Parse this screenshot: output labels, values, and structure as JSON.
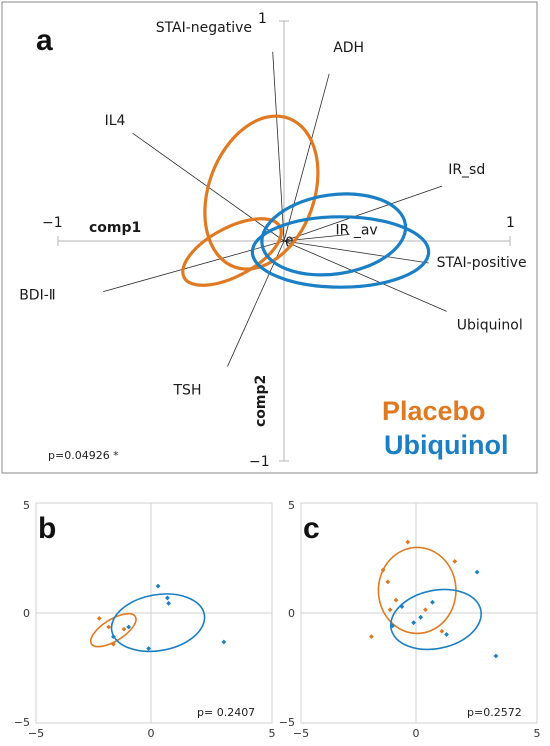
{
  "colors": {
    "placebo": "#e07a22",
    "ubiquinol": "#1a7fc4"
  },
  "chart_data": [
    {
      "panel": "a",
      "type": "scatter",
      "chart_subtype": "biplot",
      "xlabel": "comp1",
      "ylabel": "comp2",
      "xlim": [
        -1,
        1
      ],
      "ylim": [
        -1,
        1
      ],
      "axis_tick_labels": {
        "x_min": "−1",
        "x_max": "1",
        "y_min": "−1",
        "y_max": "1",
        "origin": "0"
      },
      "loadings": [
        {
          "name": "STAI-negative",
          "x": -0.05,
          "y": 0.86
        },
        {
          "name": "ADH",
          "x": 0.2,
          "y": 0.76
        },
        {
          "name": "IL4",
          "x": -0.67,
          "y": 0.49
        },
        {
          "name": "IR_sd",
          "x": 0.7,
          "y": 0.25
        },
        {
          "name": "IR _av",
          "x": 0.29,
          "y": 0.03
        },
        {
          "name": "STAI-positive",
          "x": 0.64,
          "y": -0.1
        },
        {
          "name": "BDI-Ⅱ",
          "x": -0.8,
          "y": -0.23
        },
        {
          "name": "Ubiquinol",
          "x": 0.72,
          "y": -0.32
        },
        {
          "name": "TSH",
          "x": -0.25,
          "y": -0.57
        }
      ],
      "legend": [
        {
          "name": "Placebo",
          "color": "#e07a22"
        },
        {
          "name": "Ubiquinol",
          "color": "#1a7fc4"
        }
      ],
      "ellipses": [
        {
          "series": "Placebo",
          "cx": -0.1,
          "cy": 0.22,
          "rx": 0.35,
          "ry": 0.24,
          "angle": -70
        },
        {
          "series": "Placebo",
          "cx": -0.23,
          "cy": -0.05,
          "rx": 0.24,
          "ry": 0.11,
          "angle": -28
        },
        {
          "series": "Ubiquinol",
          "cx": 0.22,
          "cy": 0.03,
          "rx": 0.32,
          "ry": 0.18,
          "angle": -8
        },
        {
          "series": "Ubiquinol",
          "cx": 0.25,
          "cy": -0.05,
          "rx": 0.39,
          "ry": 0.16,
          "angle": 0
        }
      ],
      "annotation": "p=0.04926 *"
    },
    {
      "panel": "b",
      "type": "scatter",
      "xlim": [
        -5,
        5
      ],
      "ylim": [
        -5,
        5
      ],
      "axis_tick_labels": {
        "x_min": "−5",
        "x_max": "5",
        "y_min": "−5",
        "y_max": "5",
        "origin": "0"
      },
      "series": [
        {
          "name": "Placebo",
          "color": "#e07a22",
          "points": [
            [
              -2.2,
              -0.25
            ],
            [
              -1.8,
              -0.65
            ],
            [
              -1.6,
              -1.45
            ],
            [
              -1.15,
              -0.75
            ]
          ],
          "ellipse": {
            "cx": -1.6,
            "cy": -0.8,
            "rx": 1.1,
            "ry": 0.5,
            "angle": -32
          }
        },
        {
          "name": "Ubiquinol",
          "color": "#1a7fc4",
          "points": [
            [
              -1.6,
              -1.1
            ],
            [
              -0.95,
              -0.65
            ],
            [
              -0.1,
              -1.65
            ],
            [
              0.3,
              1.25
            ],
            [
              0.7,
              0.7
            ],
            [
              0.75,
              0.45
            ],
            [
              3.1,
              -1.35
            ]
          ],
          "ellipse": {
            "cx": 0.3,
            "cy": -0.45,
            "rx": 2.0,
            "ry": 1.3,
            "angle": -10
          }
        }
      ],
      "annotation": "p= 0.2407"
    },
    {
      "panel": "c",
      "type": "scatter",
      "xlim": [
        -5,
        5
      ],
      "ylim": [
        -5,
        5
      ],
      "axis_tick_labels": {
        "x_min": "−5",
        "x_max": "5",
        "y_min": "−5",
        "y_max": "5",
        "origin": "0"
      },
      "series": [
        {
          "name": "Placebo",
          "color": "#e07a22",
          "points": [
            [
              -1.9,
              -1.1
            ],
            [
              -1.4,
              2.0
            ],
            [
              -1.2,
              1.45
            ],
            [
              -1.1,
              0.15
            ],
            [
              -0.85,
              0.6
            ],
            [
              -0.35,
              3.3
            ],
            [
              0.4,
              0.15
            ],
            [
              1.1,
              -0.85
            ],
            [
              1.65,
              2.4
            ]
          ],
          "ellipse": {
            "cx": 0.05,
            "cy": 1.05,
            "rx": 1.65,
            "ry": 2.0,
            "angle": 0
          }
        },
        {
          "name": "Ubiquinol",
          "color": "#1a7fc4",
          "points": [
            [
              -1.0,
              -0.6
            ],
            [
              -0.6,
              0.3
            ],
            [
              0.2,
              -0.2
            ],
            [
              0.7,
              0.5
            ],
            [
              1.3,
              -1.0
            ],
            [
              2.6,
              1.9
            ],
            [
              3.4,
              -2.0
            ],
            [
              -0.1,
              -0.45
            ]
          ],
          "ellipse": {
            "cx": 0.85,
            "cy": -0.3,
            "rx": 1.95,
            "ry": 1.35,
            "angle": -12
          }
        }
      ],
      "annotation": "p=0.2572"
    }
  ]
}
